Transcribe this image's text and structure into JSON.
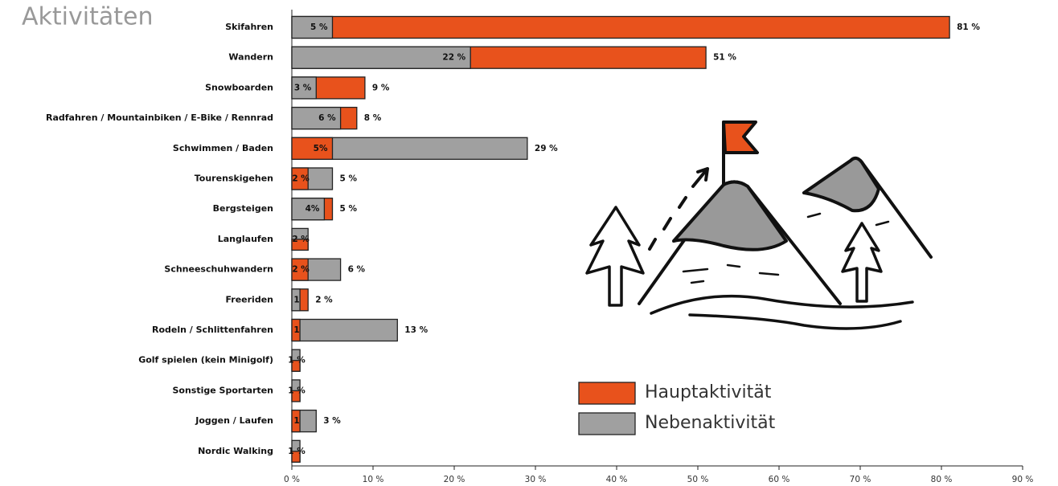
{
  "chart_data": {
    "type": "overlap-bar",
    "title": "Aktivitäten",
    "categories": [
      "Skifahren",
      "Wandern",
      "Snowboarden",
      "Radfahren / Mountainbiken / E-Bike / Rennrad",
      "Schwimmen / Baden",
      "Tourenskigehen",
      "Bergsteigen",
      "Langlaufen",
      "Schneeschuhwandern",
      "Freeriden",
      "Rodeln / Schlittenfahren",
      "Golf spielen (kein Minigolf)",
      "Sonstige Sportarten",
      "Joggen / Laufen",
      "Nordic Walking"
    ],
    "series": [
      {
        "name": "Hauptaktivität",
        "color": "#e8521c",
        "values": [
          81,
          51,
          9,
          8,
          5,
          2,
          5,
          2,
          2,
          2,
          1,
          1,
          1,
          1,
          1
        ],
        "value_labels": [
          "81 %",
          "51 %",
          "9 %",
          "8 %",
          "5%",
          "2 %",
          "5 %",
          "2 %",
          "2 %",
          "2 %",
          "1",
          "1 %",
          "1 %",
          "1",
          "1 %"
        ]
      },
      {
        "name": "Nebenaktivität",
        "color": "#a0a0a0",
        "values": [
          5,
          22,
          3,
          6,
          29,
          5,
          4,
          2,
          6,
          1,
          13,
          1,
          1,
          3,
          1
        ],
        "value_labels": [
          "5 %",
          "22 %",
          "3 %",
          "6 %",
          "29 %",
          "5 %",
          "4%",
          null,
          "6 %",
          "1",
          "13 %",
          null,
          null,
          "3 %",
          null
        ]
      }
    ],
    "xlim": [
      0,
      90
    ],
    "xticks": [
      {
        "value": 0,
        "label": "0 %"
      },
      {
        "value": 10,
        "label": "10 %"
      },
      {
        "value": 20,
        "label": "20 %"
      },
      {
        "value": 30,
        "label": "30 %"
      },
      {
        "value": 40,
        "label": "40 %"
      },
      {
        "value": 50,
        "label": "50 %"
      },
      {
        "value": 60,
        "label": "60 %"
      },
      {
        "value": 70,
        "label": "70 %"
      },
      {
        "value": 80,
        "label": "80 %"
      },
      {
        "value": 90,
        "label": "90 %"
      }
    ]
  }
}
